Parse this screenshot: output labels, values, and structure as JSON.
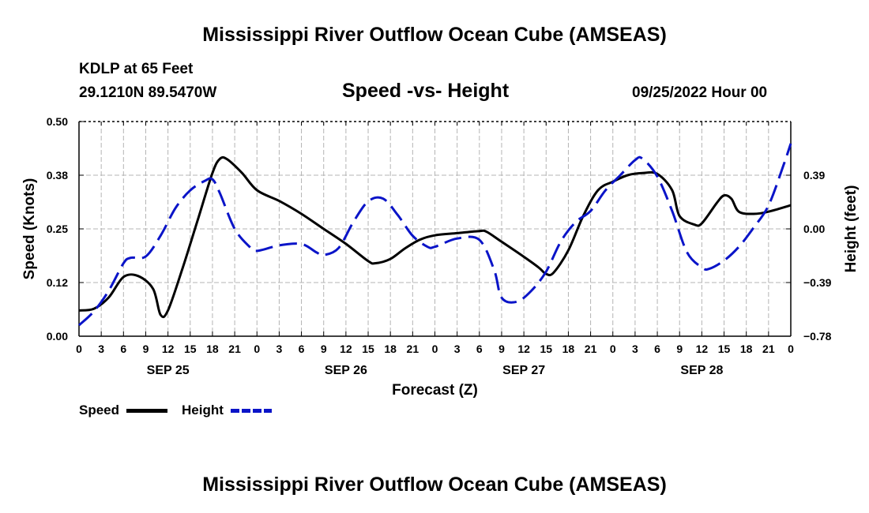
{
  "page": {
    "title": "Mississippi River Outflow Ocean Cube (AMSEAS)",
    "footer_title": "Mississippi River Outflow Ocean Cube (AMSEAS)",
    "station": "KDLP at 65 Feet",
    "coords": "29.1210N  89.5470W",
    "subtitle": "Speed -vs- Height",
    "datetime": "09/25/2022 Hour 00"
  },
  "legend": {
    "speed_label": "Speed",
    "height_label": "Height"
  },
  "colors": {
    "speed": "#000000",
    "height": "#0a14c8"
  },
  "chart_data": {
    "type": "line",
    "title": "Speed -vs- Height",
    "xlabel": "Forecast (Z)",
    "ylabel_left": "Speed (Knots)",
    "ylabel_right": "Height (feet)",
    "x_range_hours": [
      0,
      96
    ],
    "x_ticks": [
      {
        "h": 0,
        "label": "0"
      },
      {
        "h": 3,
        "label": "3"
      },
      {
        "h": 6,
        "label": "6"
      },
      {
        "h": 9,
        "label": "9"
      },
      {
        "h": 12,
        "label": "12"
      },
      {
        "h": 15,
        "label": "15"
      },
      {
        "h": 18,
        "label": "18"
      },
      {
        "h": 21,
        "label": "21"
      },
      {
        "h": 24,
        "label": "0"
      },
      {
        "h": 27,
        "label": "3"
      },
      {
        "h": 30,
        "label": "6"
      },
      {
        "h": 33,
        "label": "9"
      },
      {
        "h": 36,
        "label": "12"
      },
      {
        "h": 39,
        "label": "15"
      },
      {
        "h": 42,
        "label": "18"
      },
      {
        "h": 45,
        "label": "21"
      },
      {
        "h": 48,
        "label": "0"
      },
      {
        "h": 51,
        "label": "3"
      },
      {
        "h": 54,
        "label": "6"
      },
      {
        "h": 57,
        "label": "9"
      },
      {
        "h": 60,
        "label": "12"
      },
      {
        "h": 63,
        "label": "15"
      },
      {
        "h": 66,
        "label": "18"
      },
      {
        "h": 69,
        "label": "21"
      },
      {
        "h": 72,
        "label": "0"
      },
      {
        "h": 75,
        "label": "3"
      },
      {
        "h": 78,
        "label": "6"
      },
      {
        "h": 81,
        "label": "9"
      },
      {
        "h": 84,
        "label": "12"
      },
      {
        "h": 87,
        "label": "15"
      },
      {
        "h": 90,
        "label": "18"
      },
      {
        "h": 93,
        "label": "21"
      },
      {
        "h": 96,
        "label": "0"
      }
    ],
    "day_labels": [
      {
        "h": 12,
        "label": "SEP 25"
      },
      {
        "h": 36,
        "label": "SEP 26"
      },
      {
        "h": 60,
        "label": "SEP 27"
      },
      {
        "h": 84,
        "label": "SEP 28"
      }
    ],
    "left_axis": {
      "min": 0,
      "max": 0.5,
      "ticks": [
        0.0,
        0.125,
        0.25,
        0.375,
        0.5
      ],
      "tick_labels": [
        "0.00",
        "0.12",
        "0.25",
        "0.38",
        "0.50"
      ]
    },
    "right_axis": {
      "min": -0.78,
      "max": 0.78,
      "ticks": [
        -0.78,
        -0.39,
        0.0,
        0.39
      ],
      "tick_labels": [
        "−0.78",
        "−0.39",
        "0.00",
        "0.39"
      ]
    },
    "series": [
      {
        "name": "Speed",
        "axis": "left",
        "style": "solid",
        "points": [
          [
            0,
            0.06
          ],
          [
            2,
            0.064
          ],
          [
            4,
            0.09
          ],
          [
            6,
            0.138
          ],
          [
            8,
            0.14
          ],
          [
            10,
            0.11
          ],
          [
            11,
            0.05
          ],
          [
            12,
            0.06
          ],
          [
            14,
            0.16
          ],
          [
            16,
            0.27
          ],
          [
            18,
            0.38
          ],
          [
            19,
            0.413
          ],
          [
            20,
            0.412
          ],
          [
            22,
            0.38
          ],
          [
            24,
            0.34
          ],
          [
            27,
            0.315
          ],
          [
            30,
            0.285
          ],
          [
            33,
            0.25
          ],
          [
            36,
            0.215
          ],
          [
            39,
            0.175
          ],
          [
            40,
            0.17
          ],
          [
            42,
            0.18
          ],
          [
            44,
            0.205
          ],
          [
            46,
            0.225
          ],
          [
            48,
            0.235
          ],
          [
            51,
            0.24
          ],
          [
            54,
            0.245
          ],
          [
            55,
            0.243
          ],
          [
            57,
            0.22
          ],
          [
            60,
            0.185
          ],
          [
            62,
            0.16
          ],
          [
            63,
            0.145
          ],
          [
            64,
            0.148
          ],
          [
            66,
            0.2
          ],
          [
            68,
            0.28
          ],
          [
            70,
            0.34
          ],
          [
            72,
            0.36
          ],
          [
            74,
            0.375
          ],
          [
            76,
            0.38
          ],
          [
            78,
            0.378
          ],
          [
            80,
            0.34
          ],
          [
            81,
            0.28
          ],
          [
            83,
            0.26
          ],
          [
            84,
            0.263
          ],
          [
            86,
            0.31
          ],
          [
            87,
            0.328
          ],
          [
            88,
            0.32
          ],
          [
            89,
            0.29
          ],
          [
            91,
            0.285
          ],
          [
            93,
            0.29
          ],
          [
            96,
            0.305
          ]
        ]
      },
      {
        "name": "Height",
        "axis": "right",
        "style": "dashed",
        "points": [
          [
            0,
            -0.7
          ],
          [
            2,
            -0.6
          ],
          [
            4,
            -0.45
          ],
          [
            6,
            -0.25
          ],
          [
            7,
            -0.21
          ],
          [
            9,
            -0.2
          ],
          [
            11,
            -0.05
          ],
          [
            13,
            0.15
          ],
          [
            15,
            0.28
          ],
          [
            17,
            0.35
          ],
          [
            18,
            0.36
          ],
          [
            19,
            0.26
          ],
          [
            21,
            0.0
          ],
          [
            23,
            -0.13
          ],
          [
            24,
            -0.16
          ],
          [
            27,
            -0.12
          ],
          [
            30,
            -0.11
          ],
          [
            32,
            -0.17
          ],
          [
            33,
            -0.19
          ],
          [
            35,
            -0.14
          ],
          [
            37,
            0.05
          ],
          [
            39,
            0.2
          ],
          [
            41,
            0.22
          ],
          [
            43,
            0.1
          ],
          [
            45,
            -0.05
          ],
          [
            47,
            -0.13
          ],
          [
            48,
            -0.13
          ],
          [
            51,
            -0.07
          ],
          [
            54,
            -0.08
          ],
          [
            56,
            -0.3
          ],
          [
            57,
            -0.5
          ],
          [
            59,
            -0.53
          ],
          [
            61,
            -0.45
          ],
          [
            63,
            -0.31
          ],
          [
            65,
            -0.09
          ],
          [
            67,
            0.05
          ],
          [
            69,
            0.13
          ],
          [
            71,
            0.28
          ],
          [
            73,
            0.39
          ],
          [
            75,
            0.5
          ],
          [
            76,
            0.51
          ],
          [
            78,
            0.38
          ],
          [
            80,
            0.13
          ],
          [
            82,
            -0.17
          ],
          [
            84,
            -0.28
          ],
          [
            85,
            -0.29
          ],
          [
            87,
            -0.23
          ],
          [
            89,
            -0.13
          ],
          [
            91,
            0.01
          ],
          [
            93,
            0.17
          ],
          [
            95,
            0.46
          ],
          [
            96,
            0.62
          ]
        ]
      }
    ]
  }
}
